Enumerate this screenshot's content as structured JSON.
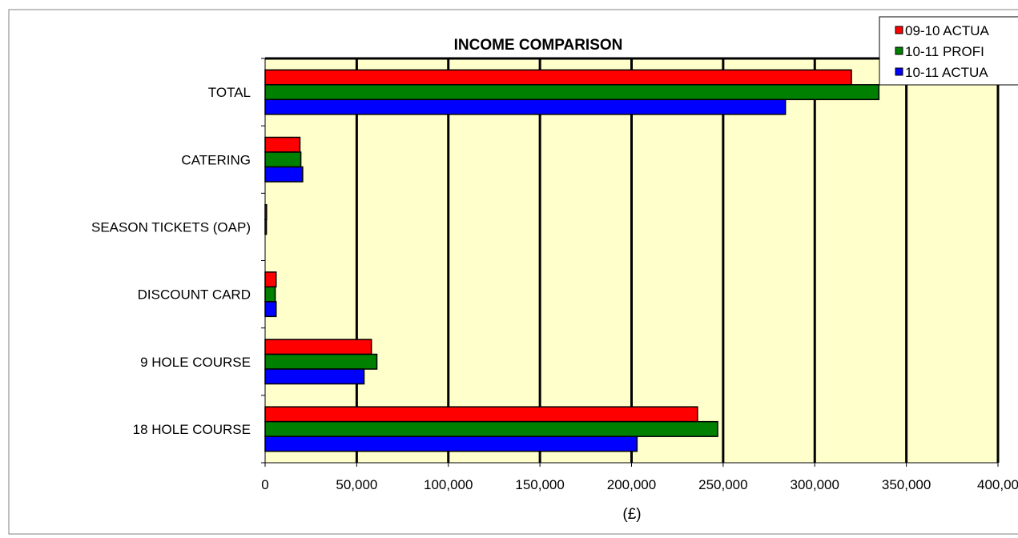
{
  "chart_data": {
    "type": "bar",
    "orientation": "horizontal",
    "title": "INCOME COMPARISON",
    "xlabel": "(£)",
    "ylabel": "",
    "categories": [
      "TOTAL",
      "CATERING",
      "SEASON TICKETS (OAP)",
      "DISCOUNT CARD",
      "9 HOLE COURSE",
      "18 HOLE COURSE"
    ],
    "series": [
      {
        "name": "09-10 ACTUA",
        "color": "#ff0000",
        "values": [
          320000,
          19000,
          800,
          6000,
          58000,
          236000
        ]
      },
      {
        "name": "10-11 PROFI",
        "color": "#008000",
        "values": [
          335000,
          19500,
          700,
          5500,
          61000,
          247000
        ]
      },
      {
        "name": "10-11 ACTUA",
        "color": "#0000ff",
        "values": [
          284000,
          20500,
          0,
          6000,
          54000,
          203000
        ]
      }
    ],
    "xlim": [
      0,
      400000
    ],
    "x_ticks": [
      "0",
      "50,000",
      "100,000",
      "150,000",
      "200,000",
      "250,000",
      "300,000",
      "350,000",
      "400,00"
    ],
    "grid": "vertical",
    "legend_position": "top-right",
    "colors": {
      "plot_background": "#ffffcc",
      "grid": "#000000"
    }
  }
}
